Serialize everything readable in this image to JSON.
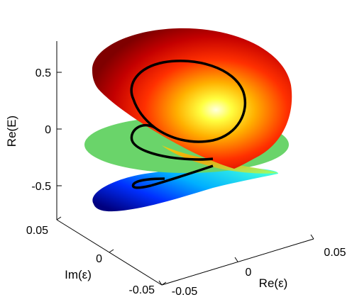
{
  "chart_data": {
    "type": "surface3d",
    "title": "",
    "axes": {
      "x": {
        "label": "Re(ε)",
        "ticks": [
          "-0.05",
          "0",
          "0.05"
        ],
        "range": [
          -0.05,
          0.05
        ]
      },
      "y": {
        "label": "Im(ε)",
        "ticks": [
          "-0.05",
          "0",
          "0.05"
        ],
        "range": [
          -0.05,
          0.05
        ]
      },
      "z": {
        "label": "Re(E)",
        "ticks": [
          "-0.5",
          "0",
          "0.5"
        ],
        "range": [
          -0.8,
          0.8
        ]
      }
    },
    "grid": false,
    "colormap": "jet",
    "colormap_colors": [
      "#00007f",
      "#0000ff",
      "#00ffff",
      "#7fff7f",
      "#ffff00",
      "#ff0000",
      "#7f0000"
    ],
    "series": [
      {
        "surface": "upper-sheet",
        "Re_E_at_max_radius": [
          0.0,
          0.55
        ],
        "color_top": "#7f0000"
      },
      {
        "surface": "middle-sheet",
        "Re_E_at_max_radius": [
          0.0,
          0.0
        ],
        "color": "#6ad46a"
      },
      {
        "surface": "lower-sheet",
        "Re_E_at_max_radius": [
          -0.55,
          0.0
        ],
        "color_bottom": "#00007f"
      }
    ],
    "curve": {
      "color": "#000000",
      "description_values": {
        "Re_E_range": [
          -0.5,
          0.5
        ]
      }
    }
  }
}
